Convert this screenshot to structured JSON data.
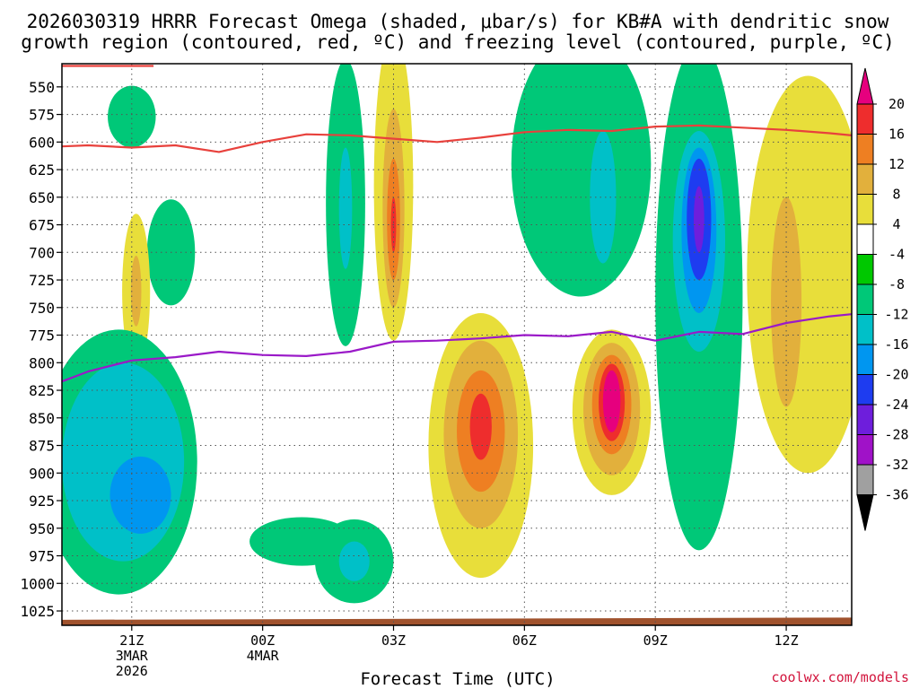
{
  "chart_data": {
    "type": "contour",
    "title": [
      "2026030319 HRRR Forecast Omega (shaded, μbar/s) for KB#A with dendritic snow",
      "growth region (contoured, red, ºC) and freezing level (contoured, purple, ºC)"
    ],
    "xlabel": "Forecast Time (UTC)",
    "ylabel": "",
    "credit": "coolwx.com/models",
    "x_range_hours_from_00Z": [
      -4.6,
      13.5
    ],
    "y_range_hpa": [
      1038,
      529
    ],
    "y_ticks": [
      "550",
      "575",
      "600",
      "625",
      "650",
      "675",
      "700",
      "725",
      "750",
      "775",
      "800",
      "825",
      "850",
      "875",
      "900",
      "925",
      "950",
      "975",
      "1000",
      "1025"
    ],
    "x_ticks": [
      {
        "hour": -3,
        "lines": [
          "21Z",
          "3MAR",
          "2026"
        ]
      },
      {
        "hour": 0,
        "lines": [
          "00Z",
          "4MAR"
        ]
      },
      {
        "hour": 3,
        "lines": [
          "03Z"
        ]
      },
      {
        "hour": 6,
        "lines": [
          "06Z"
        ]
      },
      {
        "hour": 9,
        "lines": [
          "09Z"
        ]
      },
      {
        "hour": 12,
        "lines": [
          "12Z"
        ]
      }
    ],
    "colorbar": {
      "labels": [
        "20",
        "16",
        "12",
        "8",
        "4",
        "-4",
        "-8",
        "-12",
        "-16",
        "-20",
        "-24",
        "-28",
        "-32",
        "-36"
      ],
      "colors": [
        "#e6007e",
        "#ee2d2d",
        "#ee7f22",
        "#e2b03c",
        "#e8de3a",
        "#ffffff",
        "#00c800",
        "#00c878",
        "#00c0c8",
        "#0096f0",
        "#1e3cf0",
        "#6e1edc",
        "#a012c8",
        "#a0a0a0",
        "#000000"
      ]
    },
    "series": [
      {
        "name": "dendritic snow growth region",
        "color": "#e8413c",
        "x": [
          -4.6,
          -4.0,
          -3.0,
          -2.0,
          -1.0,
          0.0,
          1.0,
          2.0,
          3.0,
          4.0,
          5.0,
          6.0,
          7.0,
          8.0,
          9.0,
          10.0,
          11.0,
          12.0,
          13.0,
          13.5
        ],
        "y": [
          604,
          603,
          605,
          603,
          609,
          600,
          593,
          594,
          597,
          600,
          596,
          591,
          589,
          590,
          586,
          585,
          587,
          589,
          592,
          594
        ]
      },
      {
        "name": "freezing level",
        "color": "#9a19c8",
        "x": [
          -4.6,
          -4.0,
          -3.0,
          -2.0,
          -1.0,
          0.0,
          1.0,
          2.0,
          3.0,
          4.0,
          5.0,
          6.0,
          7.0,
          8.0,
          9.0,
          10.0,
          11.0,
          12.0,
          13.0,
          13.5
        ],
        "y": [
          817,
          808,
          798,
          795,
          790,
          793,
          794,
          790,
          781,
          780,
          778,
          775,
          776,
          772,
          780,
          772,
          774,
          764,
          758,
          756
        ]
      },
      {
        "name": "dendritic snow growth region (upper edge)",
        "color": "#e8413c",
        "x": [
          -4.6,
          -2.5
        ],
        "y": [
          531,
          531
        ]
      }
    ],
    "omega_cells": [
      {
        "level": -8,
        "x": -3.0,
        "y": 577,
        "rx": 0.55,
        "ry": 28
      },
      {
        "level": -8,
        "x": -2.1,
        "y": 700,
        "rx": 0.55,
        "ry": 48
      },
      {
        "level": 4,
        "x": -2.9,
        "y": 735,
        "rx": 0.32,
        "ry": 70
      },
      {
        "level": 8,
        "x": -2.9,
        "y": 735,
        "rx": 0.12,
        "ry": 32
      },
      {
        "level": -8,
        "x": -3.3,
        "y": 890,
        "rx": 1.8,
        "ry": 120
      },
      {
        "level": -12,
        "x": -3.2,
        "y": 890,
        "rx": 1.4,
        "ry": 90
      },
      {
        "level": -16,
        "x": -2.8,
        "y": 920,
        "rx": 0.7,
        "ry": 35
      },
      {
        "level": -8,
        "x": 0.9,
        "y": 962,
        "rx": 1.2,
        "ry": 22
      },
      {
        "level": -8,
        "x": 2.1,
        "y": 980,
        "rx": 0.9,
        "ry": 38
      },
      {
        "level": -12,
        "x": 2.1,
        "y": 980,
        "rx": 0.35,
        "ry": 18
      },
      {
        "level": -8,
        "x": 1.9,
        "y": 655,
        "rx": 0.45,
        "ry": 130
      },
      {
        "level": -12,
        "x": 1.9,
        "y": 660,
        "rx": 0.15,
        "ry": 55
      },
      {
        "level": 4,
        "x": 3.0,
        "y": 640,
        "rx": 0.45,
        "ry": 140
      },
      {
        "level": 8,
        "x": 3.0,
        "y": 660,
        "rx": 0.25,
        "ry": 90
      },
      {
        "level": 12,
        "x": 3.0,
        "y": 670,
        "rx": 0.15,
        "ry": 55
      },
      {
        "level": 16,
        "x": 3.0,
        "y": 675,
        "rx": 0.06,
        "ry": 25
      },
      {
        "level": 4,
        "x": 5.0,
        "y": 875,
        "rx": 1.2,
        "ry": 120
      },
      {
        "level": 8,
        "x": 5.0,
        "y": 865,
        "rx": 0.85,
        "ry": 85
      },
      {
        "level": 12,
        "x": 5.0,
        "y": 862,
        "rx": 0.55,
        "ry": 55
      },
      {
        "level": 16,
        "x": 5.0,
        "y": 858,
        "rx": 0.25,
        "ry": 30
      },
      {
        "level": 4,
        "x": 8.0,
        "y": 845,
        "rx": 0.9,
        "ry": 75
      },
      {
        "level": 8,
        "x": 8.0,
        "y": 842,
        "rx": 0.65,
        "ry": 60
      },
      {
        "level": 12,
        "x": 8.0,
        "y": 838,
        "rx": 0.45,
        "ry": 45
      },
      {
        "level": 16,
        "x": 8.0,
        "y": 836,
        "rx": 0.3,
        "ry": 35
      },
      {
        "level": 20,
        "x": 8.0,
        "y": 835,
        "rx": 0.2,
        "ry": 28
      },
      {
        "level": -8,
        "x": 7.3,
        "y": 620,
        "rx": 1.6,
        "ry": 120
      },
      {
        "level": -12,
        "x": 7.8,
        "y": 650,
        "rx": 0.3,
        "ry": 60
      },
      {
        "level": -8,
        "x": 10.0,
        "y": 740,
        "rx": 1.0,
        "ry": 230
      },
      {
        "level": -12,
        "x": 10.0,
        "y": 690,
        "rx": 0.6,
        "ry": 100
      },
      {
        "level": -16,
        "x": 10.0,
        "y": 680,
        "rx": 0.4,
        "ry": 75
      },
      {
        "level": -20,
        "x": 10.0,
        "y": 670,
        "rx": 0.28,
        "ry": 55
      },
      {
        "level": -24,
        "x": 10.0,
        "y": 670,
        "rx": 0.12,
        "ry": 30
      },
      {
        "level": 4,
        "x": 12.5,
        "y": 720,
        "rx": 1.4,
        "ry": 180
      },
      {
        "level": 8,
        "x": 12.0,
        "y": 745,
        "rx": 0.35,
        "ry": 95
      }
    ],
    "ground": {
      "color": "#a0522d",
      "hpa": [
        1033,
        1031
      ]
    }
  }
}
